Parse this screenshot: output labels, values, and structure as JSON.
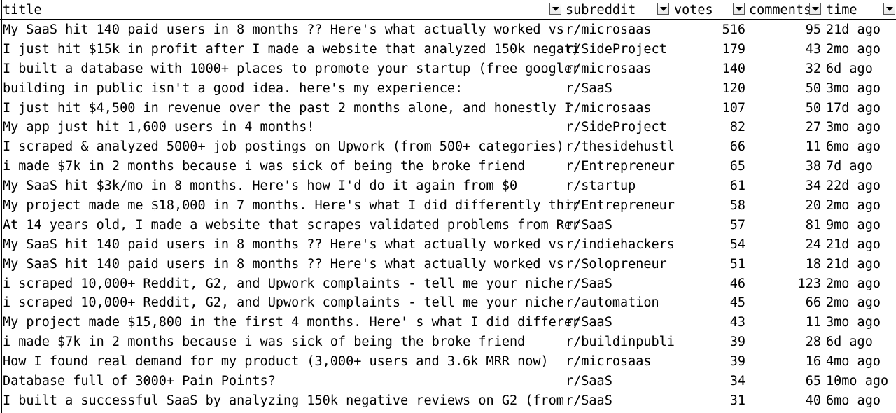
{
  "columns": {
    "title": "title",
    "subreddit": "subreddit",
    "votes": "votes",
    "comments": "comments",
    "time": "time"
  },
  "filter_icon": "dropdown-triangle",
  "rows": [
    {
      "title": "My SaaS hit 140 paid users in 8 months ?? Here's what actually worked vs",
      "subreddit": "r/microsaas",
      "votes": "516",
      "comments": "95",
      "time": "21d ago"
    },
    {
      "title": "I just hit $15k in profit after I made a website that analyzed 150k negati",
      "subreddit": "r/SideProject",
      "votes": "179",
      "comments": "43",
      "time": "2mo ago"
    },
    {
      "title": "I built a database with 1000+ places to promote your startup (free googler",
      "subreddit": "r/microsaas",
      "votes": "140",
      "comments": "32",
      "time": "6d ago"
    },
    {
      "title": "building in public isn't a good idea. here's my experience:",
      "subreddit": "r/SaaS",
      "votes": "120",
      "comments": "50",
      "time": "3mo ago"
    },
    {
      "title": "I just hit $4,500 in revenue over the past 2 months alone, and honestly I",
      "subreddit": "r/microsaas",
      "votes": "107",
      "comments": "50",
      "time": "17d ago"
    },
    {
      "title": "My app just hit 1,600 users in 4 months!",
      "subreddit": "r/SideProject",
      "votes": "82",
      "comments": "27",
      "time": "3mo ago"
    },
    {
      "title": "I scraped & analyzed 5000+ job postings on Upwork (from 500+ categories)",
      "subreddit": "r/thesidehustl",
      "votes": "66",
      "comments": "11",
      "time": "6mo ago"
    },
    {
      "title": "i made $7k in 2 months because i was sick of being the broke friend",
      "subreddit": "r/Entrepreneur",
      "votes": "65",
      "comments": "38",
      "time": "7d ago"
    },
    {
      "title": "My SaaS hit $3k/mo in 8 months. Here's how I'd do it again from $0",
      "subreddit": "r/startup",
      "votes": "61",
      "comments": "34",
      "time": "22d ago"
    },
    {
      "title": "My project made me $18,000 in 7 months. Here's what I did differently thir",
      "subreddit": "r/Entrepreneur",
      "votes": "58",
      "comments": "20",
      "time": "2mo ago"
    },
    {
      "title": "At 14 years old, I made a website that scrapes validated problems from Rer",
      "subreddit": "r/SaaS",
      "votes": "57",
      "comments": "81",
      "time": "9mo ago"
    },
    {
      "title": "My SaaS hit 140 paid users in 8 months ?? Here's what actually worked vs",
      "subreddit": "r/indiehackers",
      "votes": "54",
      "comments": "24",
      "time": "21d ago"
    },
    {
      "title": "My SaaS hit 140 paid users in 8 months ?? Here's what actually worked vs",
      "subreddit": "r/Solopreneur",
      "votes": "51",
      "comments": "18",
      "time": "21d ago"
    },
    {
      "title": "i scraped 10,000+ Reddit, G2, and Upwork complaints - tell me your niche",
      "subreddit": "r/SaaS",
      "votes": "46",
      "comments": "123",
      "time": "2mo ago"
    },
    {
      "title": "i scraped 10,000+ Reddit, G2, and Upwork complaints - tell me your niche",
      "subreddit": "r/automation",
      "votes": "45",
      "comments": "66",
      "time": "2mo ago"
    },
    {
      "title": "My project made $15,800 in the first 4 months. Here' s what I did differer",
      "subreddit": "r/SaaS",
      "votes": "43",
      "comments": "11",
      "time": "3mo ago"
    },
    {
      "title": "i made $7k in 2 months because i was sick of being the broke friend",
      "subreddit": "r/buildinpubli",
      "votes": "39",
      "comments": "28",
      "time": "6d ago"
    },
    {
      "title": "How I found real demand for my product (3,000+ users and 3.6k MRR now)",
      "subreddit": "r/microsaas",
      "votes": "39",
      "comments": "16",
      "time": "4mo ago"
    },
    {
      "title": "Database full of 3000+ Pain Points?",
      "subreddit": "r/SaaS",
      "votes": "34",
      "comments": "65",
      "time": "10mo ago"
    },
    {
      "title": "I built a successful SaaS by analyzing 150k negative reviews on G2 (from",
      "subreddit": "r/SaaS",
      "votes": "31",
      "comments": "40",
      "time": "6mo ago"
    }
  ]
}
